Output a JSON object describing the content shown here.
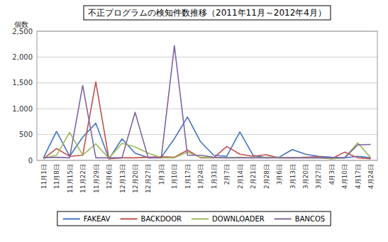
{
  "chart_data": {
    "type": "line",
    "title": "不正プログラムの検知件数推移（2011年11月～2012年4月）",
    "y_label": "個数",
    "categories": [
      "11月1日",
      "11月8日",
      "11月15日",
      "11月22日",
      "11月29日",
      "12月6日",
      "12月13日",
      "12月20日",
      "12月27日",
      "1月3日",
      "1月10日",
      "1月17日",
      "1月24日",
      "1月31日",
      "2月7日",
      "2月14日",
      "2月21日",
      "2月28日",
      "3月6日",
      "3月13日",
      "3月20日",
      "3月27日",
      "4月3日",
      "4月10日",
      "4月17日",
      "4月24日"
    ],
    "series": [
      {
        "name": "FAKEAV",
        "color": "#4472C4",
        "values": [
          50,
          560,
          80,
          450,
          720,
          30,
          415,
          140,
          50,
          60,
          420,
          840,
          360,
          100,
          80,
          550,
          100,
          50,
          60,
          210,
          120,
          80,
          60,
          50,
          80,
          50
        ]
      },
      {
        "name": "BACKDOOR",
        "color": "#C0504D",
        "values": [
          30,
          230,
          80,
          100,
          1520,
          30,
          50,
          50,
          60,
          70,
          60,
          200,
          50,
          50,
          270,
          120,
          80,
          110,
          50,
          50,
          60,
          70,
          30,
          160,
          50,
          30
        ]
      },
      {
        "name": "DOWNLOADER",
        "color": "#9BBB59",
        "values": [
          40,
          100,
          540,
          100,
          320,
          40,
          330,
          260,
          140,
          50,
          50,
          160,
          60,
          50,
          50,
          60,
          50,
          60,
          60,
          50,
          50,
          50,
          30,
          50,
          340,
          50
        ]
      },
      {
        "name": "BANCOS",
        "color": "#8064A2",
        "values": [
          50,
          60,
          50,
          1450,
          50,
          50,
          50,
          930,
          50,
          50,
          2220,
          100,
          100,
          60,
          50,
          50,
          50,
          50,
          50,
          50,
          50,
          50,
          50,
          50,
          300,
          310
        ]
      }
    ],
    "ylim": [
      0,
      2500
    ],
    "yticks": [
      0,
      500,
      {
        "value": 1000,
        "label": "1,000"
      },
      {
        "value": 1500,
        "label": "1,500"
      },
      {
        "value": 2000,
        "label": "2,000"
      },
      {
        "value": 2500,
        "label": "2,500"
      }
    ],
    "grid": true,
    "legend": "bottom"
  }
}
